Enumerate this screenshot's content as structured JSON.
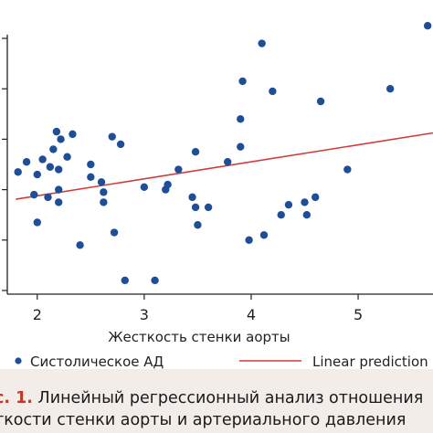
{
  "chart_data": {
    "type": "scatter",
    "title": "",
    "xlabel": "Жесткость стенки аорты",
    "ylabel": "",
    "xlim": [
      1.72,
      5.7
    ],
    "ylim": [
      0,
      100
    ],
    "x_ticks": [
      "2",
      "3",
      "4",
      "5"
    ],
    "grid": false,
    "legend_position": "bottom",
    "series": [
      {
        "name": "Систолическое АД",
        "kind": "scatter",
        "color": "#1f4e99",
        "points": [
          [
            1.82,
            47
          ],
          [
            1.9,
            51
          ],
          [
            1.97,
            38
          ],
          [
            2.0,
            46
          ],
          [
            2.0,
            27
          ],
          [
            2.05,
            52
          ],
          [
            2.1,
            37
          ],
          [
            2.12,
            49
          ],
          [
            2.15,
            56
          ],
          [
            2.2,
            35
          ],
          [
            2.2,
            48
          ],
          [
            2.2,
            40
          ],
          [
            2.18,
            63
          ],
          [
            2.22,
            60
          ],
          [
            2.28,
            53
          ],
          [
            2.33,
            62
          ],
          [
            2.4,
            18
          ],
          [
            2.5,
            45
          ],
          [
            2.5,
            50
          ],
          [
            2.6,
            43
          ],
          [
            2.62,
            39
          ],
          [
            2.62,
            35
          ],
          [
            2.7,
            61
          ],
          [
            2.72,
            23
          ],
          [
            2.78,
            58
          ],
          [
            2.82,
            4
          ],
          [
            3.0,
            41
          ],
          [
            3.1,
            4
          ],
          [
            3.2,
            40
          ],
          [
            3.22,
            42
          ],
          [
            3.32,
            48
          ],
          [
            3.45,
            37
          ],
          [
            3.48,
            55
          ],
          [
            3.48,
            33
          ],
          [
            3.5,
            26
          ],
          [
            3.6,
            33
          ],
          [
            3.78,
            51
          ],
          [
            3.9,
            68
          ],
          [
            3.9,
            57
          ],
          [
            3.92,
            83
          ],
          [
            3.98,
            20
          ],
          [
            4.1,
            98
          ],
          [
            4.12,
            22
          ],
          [
            4.2,
            79
          ],
          [
            4.28,
            30
          ],
          [
            4.35,
            34
          ],
          [
            4.5,
            35
          ],
          [
            4.52,
            30
          ],
          [
            4.6,
            37
          ],
          [
            4.65,
            75
          ],
          [
            4.9,
            48
          ],
          [
            5.3,
            80
          ],
          [
            5.65,
            105
          ]
        ]
      },
      {
        "name": "Linear prediction",
        "kind": "line",
        "color": "#d23a3a",
        "x": [
          1.8,
          5.7
        ],
        "y": [
          36.2,
          62.5
        ]
      }
    ]
  },
  "caption": {
    "figure_label": "с. 1.",
    "line1": "Линейный регрессионный анализ отношения",
    "line2": "ткости стенки аорты и артериального давления"
  }
}
